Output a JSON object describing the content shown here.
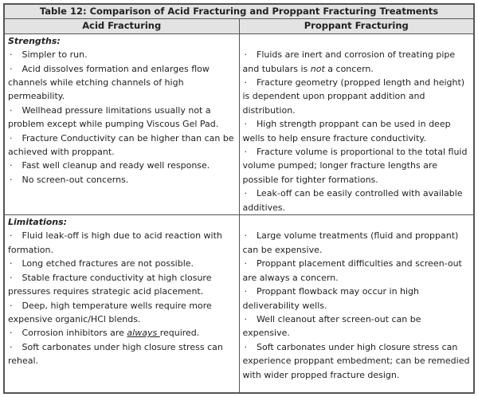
{
  "title": "Table 12:  Comparison of Acid Fracturing and Proppant Fracturing Treatments",
  "columns": [
    "Acid Fracturing",
    "Proppant Fracturing"
  ],
  "strengths": {
    "label": "Strengths:",
    "acid": [
      {
        "pre": "Simpler to run."
      },
      {
        "pre": "Acid dissolves formation and enlarges flow channels while etching channels of high permeability."
      },
      {
        "pre": "Wellhead pressure limitations usually not a problem except while pumping Viscous Gel Pad."
      },
      {
        "pre": "Fracture Conductivity can be higher than can be achieved with proppant."
      },
      {
        "pre": "Fast well cleanup and ready well response."
      },
      {
        "pre": "No screen-out concerns."
      }
    ],
    "proppant": [
      {
        "pre": "Fluids are inert and corrosion of treating pipe and tubulars is ",
        "em": "not",
        "post": " a concern."
      },
      {
        "pre": "Fracture geometry (propped length and height) is dependent upon proppant addition and distribution."
      },
      {
        "pre": "High strength proppant can be used in deep wells to help ensure fracture conductivity."
      },
      {
        "pre": "Fracture volume is proportional to the total fluid volume pumped; longer fracture lengths are possible for tighter formations."
      },
      {
        "pre": "Leak-off can be easily controlled with available additives."
      }
    ]
  },
  "limitations": {
    "label": "Limitations:",
    "acid": [
      {
        "pre": "Fluid leak-off is high due to acid reaction with formation."
      },
      {
        "pre": "Long etched fractures are not possible."
      },
      {
        "pre": "Stable fracture conductivity at high closure pressures requires strategic acid placement."
      },
      {
        "pre": "Deep, high temperature wells require more expensive organic/HCl blends."
      },
      {
        "pre": "Corrosion inhibitors are ",
        "em": "always ",
        "post": "required.",
        "underline": true
      },
      {
        "pre": "Soft carbonates under high closure stress can reheal."
      }
    ],
    "proppant": [
      {
        "pre": "Large volume treatments (fluid and proppant) can be expensive."
      },
      {
        "pre": "Proppant placement difficulties and screen-out are always a concern."
      },
      {
        "pre": "Proppant flowback may occur in high deliverability wells."
      },
      {
        "pre": "Well cleanout after screen-out can be expensive."
      },
      {
        "pre": "Soft carbonates under high closure stress can experience proppant embedment; can be remedied with wider propped fracture design."
      }
    ]
  },
  "bullet": "·"
}
